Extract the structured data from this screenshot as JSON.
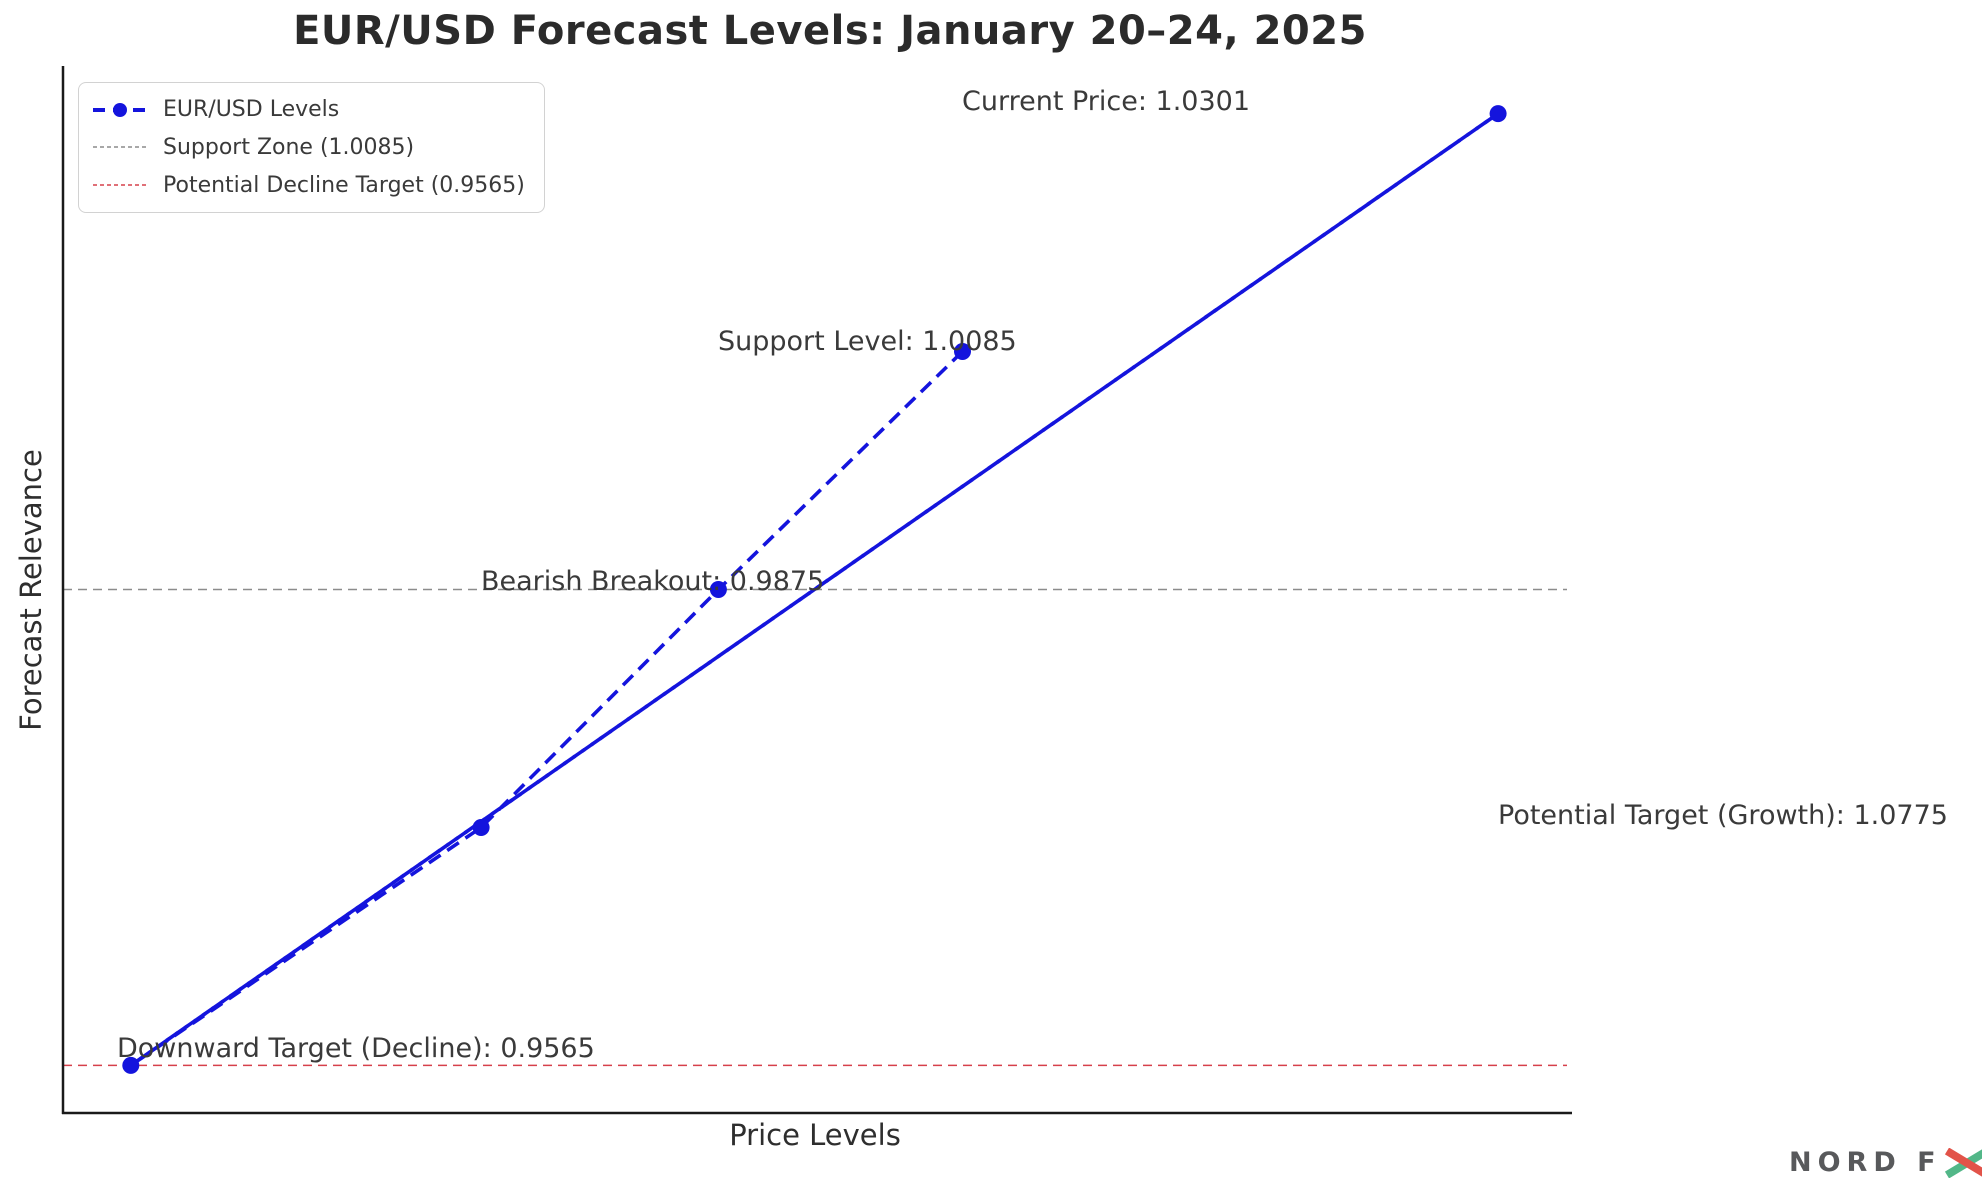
{
  "chart_data": {
    "type": "line",
    "title": "EUR/USD Forecast Levels: January 20–24, 2025",
    "xlabel": "Price Levels",
    "ylabel": "Forecast Relevance",
    "xlim": [
      0.9505,
      1.0836
    ],
    "ylim": [
      0.8,
      5.2
    ],
    "grid": false,
    "legend_position": "upper-left",
    "axis_color": "#1a1a1a",
    "text_color": "#3a3a3a",
    "series": [
      {
        "name": "EUR/USD Levels",
        "color": "#1414dd",
        "linestyle": "dashed",
        "marker": "circle",
        "points": [
          {
            "label": "Current Price",
            "price": 1.0301,
            "relevance": 4
          },
          {
            "label": "Support Level",
            "price": 1.0085,
            "relevance": 3
          },
          {
            "label": "Bearish Breakout",
            "price": 0.9875,
            "relevance": 2
          },
          {
            "label": "Downward Target (Decline)",
            "price": 0.9565,
            "relevance": 1
          },
          {
            "label": "Potential Target (Growth)",
            "price": 1.0775,
            "relevance": 5
          }
        ]
      }
    ],
    "reference_lines": [
      {
        "label": "Support Zone (1.0085)",
        "price": 1.0085,
        "relevance": 3,
        "color": "#8c8c8c"
      },
      {
        "label": "Potential Decline Target (0.9565)",
        "price": 0.9565,
        "relevance": 1,
        "color": "#d6404b"
      }
    ],
    "annotations": [
      {
        "text": "Current Price: 1.0301",
        "price": 1.0301,
        "relevance": 5.05
      },
      {
        "text": "Support Level: 1.0085",
        "price": 1.0085,
        "relevance": 4.04
      },
      {
        "text": "Bearish Breakout: 0.9875",
        "price": 0.9875,
        "relevance": 3.03
      },
      {
        "text": "Downward Target (Decline): 0.9565",
        "price": 0.9565,
        "relevance": 1.07,
        "dx": -14
      },
      {
        "text": "Potential Target (Growth): 1.0775",
        "price": 1.0775,
        "relevance": 2.05
      }
    ],
    "legend": {
      "items": [
        {
          "label": "EUR/USD Levels",
          "swatch": "blue-dashed-marker"
        },
        {
          "label": "Support Zone (1.0085)",
          "swatch": "gray-dashed"
        },
        {
          "label": "Potential Decline Target (0.9565)",
          "swatch": "red-dashed"
        }
      ]
    }
  },
  "brand": {
    "text_part": "NORD F",
    "x_letter": "X",
    "gray": "#58595b",
    "red": "#e25349",
    "green": "#52b788"
  }
}
